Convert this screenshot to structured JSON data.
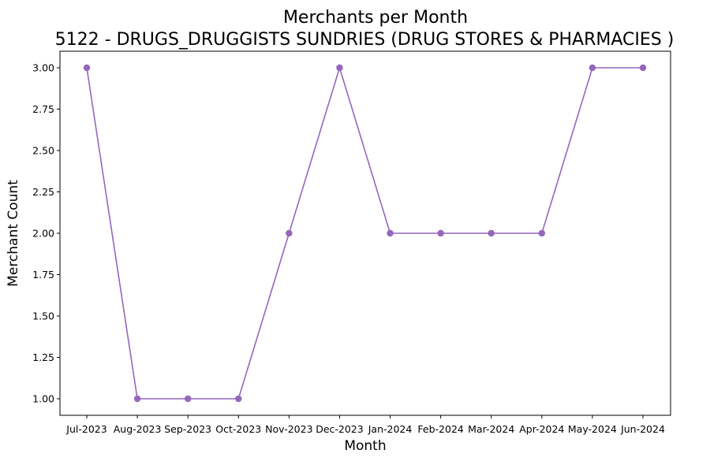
{
  "chart_data": {
    "type": "line",
    "title": "Merchants per Month",
    "subtitle": "5122 - DRUGS_DRUGGISTS SUNDRIES (DRUG STORES & PHARMACIES )",
    "xlabel": "Month",
    "ylabel": "Merchant Count",
    "categories": [
      "Jul-2023",
      "Aug-2023",
      "Sep-2023",
      "Oct-2023",
      "Nov-2023",
      "Dec-2023",
      "Jan-2024",
      "Feb-2024",
      "Mar-2024",
      "Apr-2024",
      "May-2024",
      "Jun-2024"
    ],
    "series": [
      {
        "values": [
          3,
          1,
          1,
          1,
          2,
          3,
          2,
          2,
          2,
          2,
          3,
          3
        ],
        "color": "#9467bd",
        "marker": "circle"
      }
    ],
    "ylim": [
      0.9,
      3.1
    ],
    "yticks": [
      "1.00",
      "1.25",
      "1.50",
      "1.75",
      "2.00",
      "2.25",
      "2.50",
      "2.75",
      "3.00"
    ],
    "grid": false,
    "legend": "none"
  }
}
